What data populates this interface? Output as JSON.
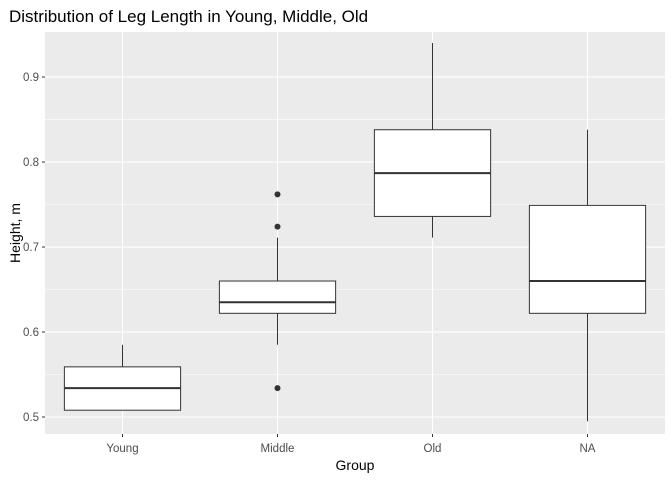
{
  "chart_data": {
    "type": "boxplot",
    "title": "Distribution of Leg Length in Young, Middle, Old",
    "xlabel": "Group",
    "ylabel": "Height, m",
    "ylim": [
      0.48,
      0.953
    ],
    "yticks": [
      0.5,
      0.6,
      0.7,
      0.8,
      0.9
    ],
    "ytick_labels": [
      "0.5",
      "0.6",
      "0.7",
      "0.8",
      "0.9"
    ],
    "categories": [
      "Young",
      "Middle",
      "Old",
      "NA"
    ],
    "boxes": [
      {
        "group": "Young",
        "whisker_low": 0.508,
        "q1": 0.508,
        "median": 0.534,
        "q3": 0.559,
        "whisker_high": 0.585,
        "outliers": []
      },
      {
        "group": "Middle",
        "whisker_low": 0.585,
        "q1": 0.622,
        "median": 0.635,
        "q3": 0.66,
        "whisker_high": 0.711,
        "outliers": [
          0.762,
          0.724,
          0.534
        ]
      },
      {
        "group": "Old",
        "whisker_low": 0.711,
        "q1": 0.736,
        "median": 0.787,
        "q3": 0.838,
        "whisker_high": 0.94,
        "outliers": []
      },
      {
        "group": "NA",
        "whisker_low": 0.495,
        "q1": 0.622,
        "median": 0.66,
        "q3": 0.749,
        "whisker_high": 0.838,
        "outliers": []
      }
    ],
    "grid": true,
    "legend": "none",
    "colors": {
      "panel": "#ebebeb",
      "grid": "#ffffff",
      "box_fill": "#ffffff",
      "box_line": "#333333",
      "axis_text": "#4d4d4d",
      "tick": "#333333"
    }
  }
}
